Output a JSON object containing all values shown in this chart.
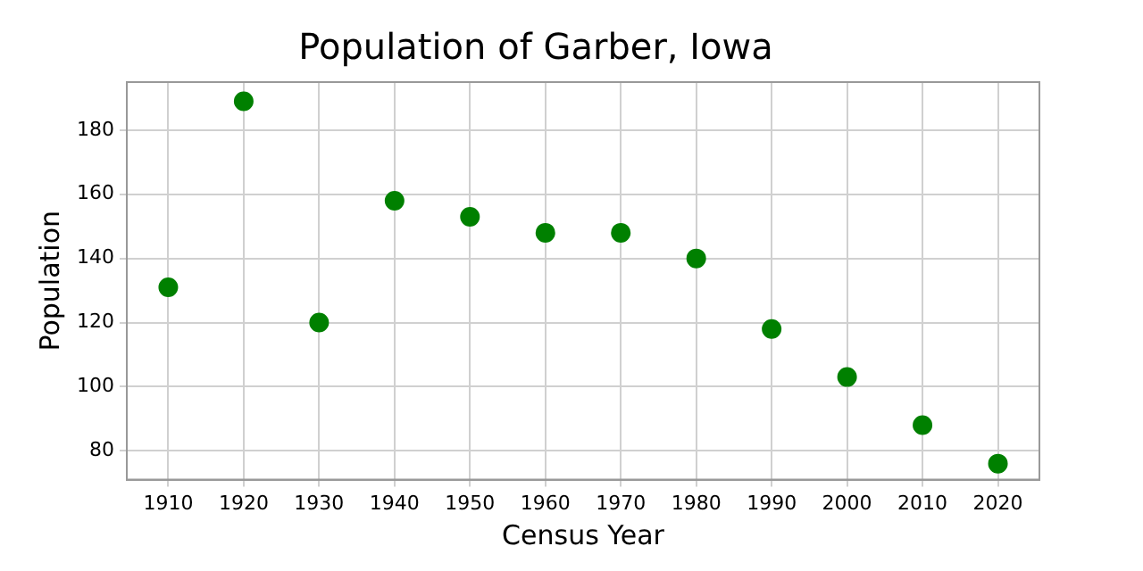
{
  "chart_data": {
    "type": "scatter",
    "title": "Population of Garber, Iowa",
    "xlabel": "Census Year",
    "ylabel": "Population",
    "x": [
      1910,
      1920,
      1930,
      1940,
      1950,
      1960,
      1970,
      1980,
      1990,
      2000,
      2010,
      2020
    ],
    "series": [
      {
        "color": "#008000",
        "values": [
          131,
          189,
          120,
          158,
          153,
          148,
          148,
          140,
          118,
          103,
          88,
          76
        ]
      }
    ],
    "xlim": [
      1904.5,
      2025.5
    ],
    "xticks": [
      1910,
      1920,
      1930,
      1940,
      1950,
      1960,
      1970,
      1980,
      1990,
      2000,
      2010,
      2020
    ],
    "ylim": [
      71,
      195
    ],
    "yticks": [
      80,
      100,
      120,
      140,
      160,
      180
    ],
    "grid": true,
    "marker": "circle",
    "legend": false
  }
}
